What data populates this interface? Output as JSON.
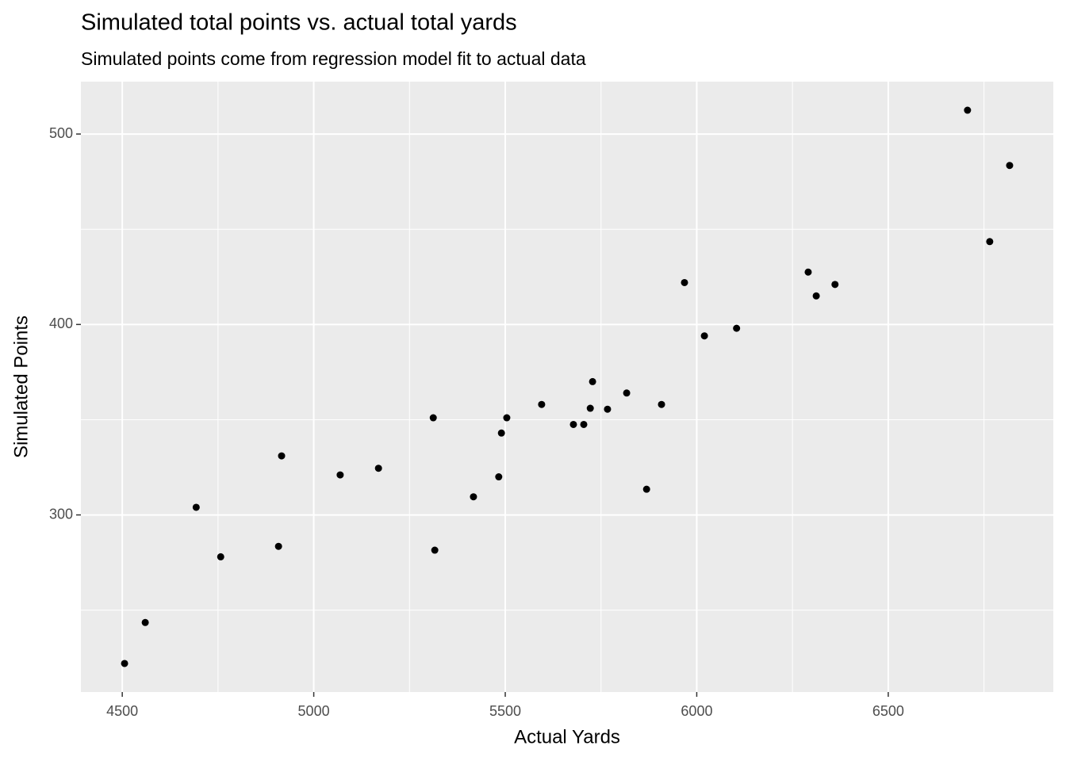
{
  "chart_data": {
    "type": "scatter",
    "title": "Simulated total points vs. actual total yards",
    "subtitle": "Simulated points come from regression model fit to actual data",
    "x_label": "Actual Yards",
    "y_label": "Simulated Points",
    "x": [
      4506,
      4560,
      4693,
      4757,
      4908,
      4916,
      5069,
      5169,
      5312,
      5316,
      5417,
      5483,
      5490,
      5504,
      5595,
      5678,
      5705,
      5722,
      5728,
      5767,
      5817,
      5869,
      5908,
      5968,
      6020,
      6104,
      6291,
      6312,
      6361,
      6707,
      6765,
      6817
    ],
    "values": [
      222,
      243.5,
      304,
      278,
      283.5,
      331,
      321,
      324.5,
      351,
      281.5,
      309.5,
      320,
      343,
      351,
      358,
      347.5,
      347.5,
      356,
      370,
      355.5,
      364,
      313.5,
      358,
      422,
      394,
      398,
      427.5,
      415,
      421,
      512.5,
      443.5,
      483.5
    ],
    "color": "#000000",
    "xlim": [
      4392,
      6931
    ],
    "ylim": [
      207,
      527.5
    ],
    "xticks": [
      4500,
      5000,
      5500,
      6000,
      6500
    ],
    "yticks": [
      300,
      400,
      500
    ],
    "grid": true
  }
}
